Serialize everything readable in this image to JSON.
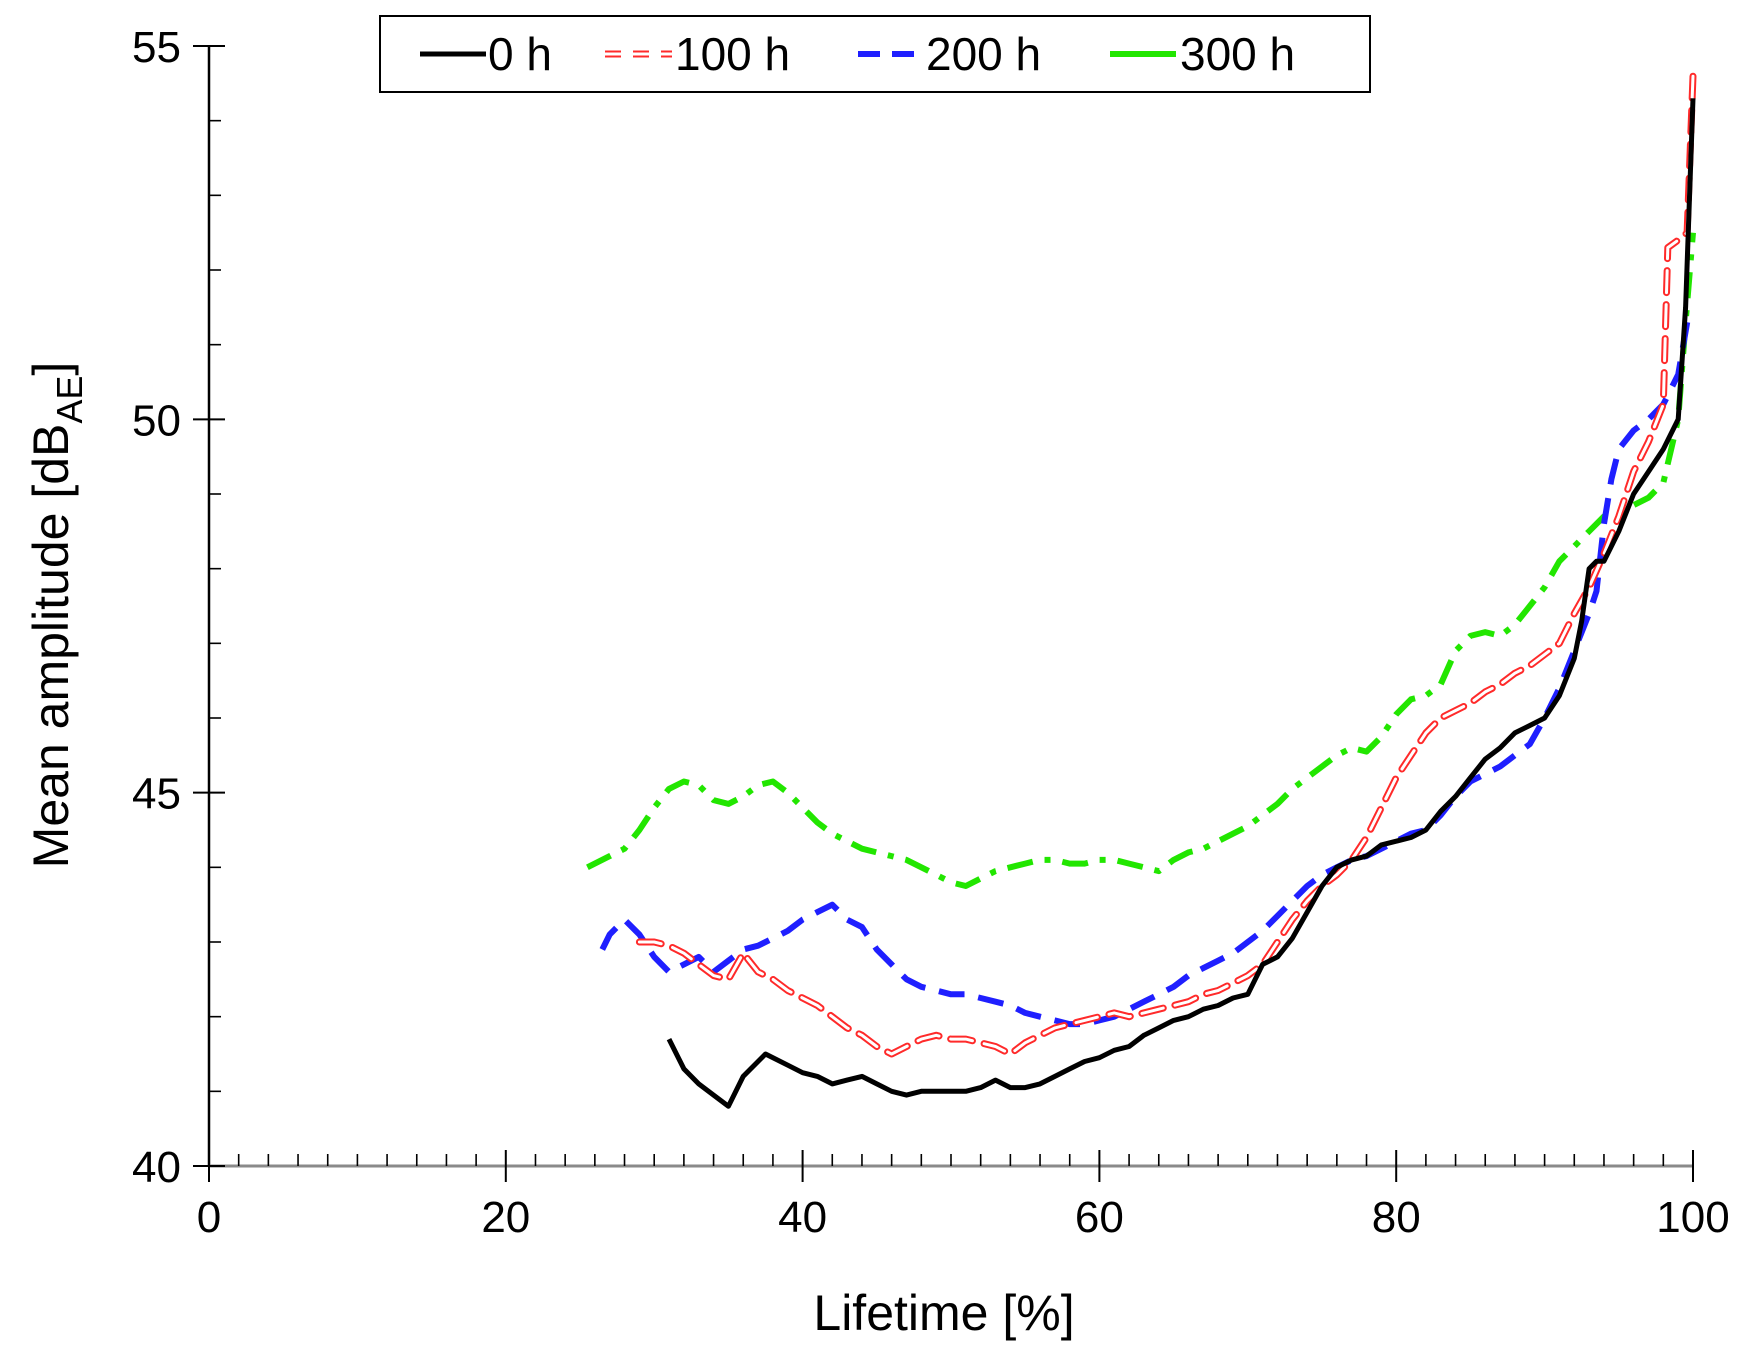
{
  "chart_data": {
    "type": "line",
    "title": "",
    "xlabel": "Lifetime [%]",
    "ylabel": {
      "main": "Mean amplitude [dB",
      "sub": "AE",
      "close": "]"
    },
    "xlim": [
      0,
      100
    ],
    "ylim": [
      40,
      55
    ],
    "xticks": [
      0,
      20,
      40,
      60,
      80,
      100
    ],
    "yticks": [
      40,
      45,
      50,
      55
    ],
    "x_minor_step": 2,
    "y_minor_step": 1,
    "grid": false,
    "legend_position": "top",
    "series": [
      {
        "name": "0 h",
        "color": "#000000",
        "dash": "solid",
        "points": [
          [
            31,
            41.7
          ],
          [
            32,
            41.3
          ],
          [
            33,
            41.1
          ],
          [
            34,
            40.95
          ],
          [
            35,
            40.8
          ],
          [
            36,
            41.2
          ],
          [
            37.5,
            41.5
          ],
          [
            39,
            41.35
          ],
          [
            40,
            41.25
          ],
          [
            41,
            41.2
          ],
          [
            42,
            41.1
          ],
          [
            43,
            41.15
          ],
          [
            44,
            41.2
          ],
          [
            45,
            41.1
          ],
          [
            46,
            41.0
          ],
          [
            47,
            40.95
          ],
          [
            48,
            41.0
          ],
          [
            49,
            41.0
          ],
          [
            50,
            41.0
          ],
          [
            51,
            41.0
          ],
          [
            52,
            41.05
          ],
          [
            53,
            41.15
          ],
          [
            54,
            41.05
          ],
          [
            55,
            41.05
          ],
          [
            56,
            41.1
          ],
          [
            57,
            41.2
          ],
          [
            58,
            41.3
          ],
          [
            59,
            41.4
          ],
          [
            60,
            41.45
          ],
          [
            61,
            41.55
          ],
          [
            62,
            41.6
          ],
          [
            63,
            41.75
          ],
          [
            64,
            41.85
          ],
          [
            65,
            41.95
          ],
          [
            66,
            42.0
          ],
          [
            67,
            42.1
          ],
          [
            68,
            42.15
          ],
          [
            69,
            42.25
          ],
          [
            70,
            42.3
          ],
          [
            70.5,
            42.5
          ],
          [
            71,
            42.7
          ],
          [
            72,
            42.8
          ],
          [
            73,
            43.05
          ],
          [
            74,
            43.4
          ],
          [
            75,
            43.75
          ],
          [
            76,
            44.0
          ],
          [
            77,
            44.1
          ],
          [
            78,
            44.15
          ],
          [
            79,
            44.3
          ],
          [
            80,
            44.35
          ],
          [
            81,
            44.4
          ],
          [
            82,
            44.5
          ],
          [
            83,
            44.75
          ],
          [
            84,
            44.95
          ],
          [
            85,
            45.2
          ],
          [
            86,
            45.45
          ],
          [
            87,
            45.6
          ],
          [
            88,
            45.8
          ],
          [
            89,
            45.9
          ],
          [
            90,
            46.0
          ],
          [
            91,
            46.3
          ],
          [
            92,
            46.8
          ],
          [
            92.5,
            47.3
          ],
          [
            93,
            48.0
          ],
          [
            93.5,
            48.1
          ],
          [
            94,
            48.1
          ],
          [
            94.5,
            48.3
          ],
          [
            95,
            48.5
          ],
          [
            96,
            49.0
          ],
          [
            97,
            49.3
          ],
          [
            98,
            49.6
          ],
          [
            99,
            50.0
          ],
          [
            99.5,
            51.5
          ],
          [
            100,
            54.3
          ]
        ]
      },
      {
        "name": "100 h",
        "color": "#ff2a2a",
        "dash": "outline-dash",
        "points": [
          [
            29,
            43.0
          ],
          [
            30,
            43.0
          ],
          [
            31,
            42.95
          ],
          [
            32,
            42.85
          ],
          [
            33,
            42.7
          ],
          [
            34,
            42.55
          ],
          [
            35,
            42.5
          ],
          [
            36,
            42.85
          ],
          [
            37,
            42.6
          ],
          [
            38,
            42.5
          ],
          [
            39,
            42.35
          ],
          [
            40,
            42.25
          ],
          [
            41,
            42.15
          ],
          [
            42,
            42.0
          ],
          [
            43,
            41.85
          ],
          [
            44,
            41.75
          ],
          [
            45,
            41.6
          ],
          [
            46,
            41.5
          ],
          [
            47,
            41.6
          ],
          [
            48,
            41.7
          ],
          [
            49,
            41.75
          ],
          [
            50,
            41.7
          ],
          [
            51,
            41.7
          ],
          [
            52,
            41.65
          ],
          [
            53,
            41.6
          ],
          [
            54,
            41.5
          ],
          [
            55,
            41.65
          ],
          [
            56,
            41.75
          ],
          [
            57,
            41.85
          ],
          [
            58,
            41.9
          ],
          [
            59,
            41.95
          ],
          [
            60,
            42.0
          ],
          [
            61,
            42.05
          ],
          [
            62,
            42.0
          ],
          [
            63,
            42.05
          ],
          [
            64,
            42.1
          ],
          [
            65,
            42.15
          ],
          [
            66,
            42.2
          ],
          [
            67,
            42.3
          ],
          [
            68,
            42.35
          ],
          [
            69,
            42.45
          ],
          [
            70,
            42.55
          ],
          [
            71,
            42.7
          ],
          [
            72,
            43.0
          ],
          [
            73,
            43.3
          ],
          [
            74,
            43.55
          ],
          [
            75,
            43.75
          ],
          [
            76,
            43.9
          ],
          [
            77,
            44.1
          ],
          [
            78,
            44.4
          ],
          [
            79,
            44.8
          ],
          [
            80,
            45.2
          ],
          [
            81,
            45.5
          ],
          [
            82,
            45.8
          ],
          [
            83,
            46.0
          ],
          [
            84,
            46.1
          ],
          [
            85,
            46.2
          ],
          [
            86,
            46.35
          ],
          [
            87,
            46.45
          ],
          [
            88,
            46.6
          ],
          [
            89,
            46.7
          ],
          [
            90,
            46.85
          ],
          [
            91,
            47.0
          ],
          [
            92,
            47.4
          ],
          [
            93,
            47.75
          ],
          [
            94,
            48.2
          ],
          [
            95,
            48.7
          ],
          [
            96,
            49.3
          ],
          [
            97,
            49.7
          ],
          [
            98,
            50.2
          ],
          [
            98.3,
            52.3
          ],
          [
            99,
            52.4
          ],
          [
            99.6,
            52.5
          ],
          [
            100,
            54.6
          ]
        ]
      },
      {
        "name": "200 h",
        "color": "#1f1fff",
        "dash": "dash",
        "points": [
          [
            26.5,
            42.9
          ],
          [
            27,
            43.1
          ],
          [
            28,
            43.3
          ],
          [
            29,
            43.1
          ],
          [
            30,
            42.8
          ],
          [
            31,
            42.6
          ],
          [
            32,
            42.7
          ],
          [
            33,
            42.8
          ],
          [
            34,
            42.6
          ],
          [
            35,
            42.75
          ],
          [
            36,
            42.9
          ],
          [
            37,
            42.95
          ],
          [
            38,
            43.05
          ],
          [
            39,
            43.15
          ],
          [
            40,
            43.3
          ],
          [
            41,
            43.4
          ],
          [
            42,
            43.5
          ],
          [
            43,
            43.3
          ],
          [
            44,
            43.2
          ],
          [
            45,
            42.9
          ],
          [
            46,
            42.7
          ],
          [
            47,
            42.5
          ],
          [
            48,
            42.4
          ],
          [
            49,
            42.35
          ],
          [
            50,
            42.3
          ],
          [
            51,
            42.3
          ],
          [
            52,
            42.25
          ],
          [
            53,
            42.2
          ],
          [
            54,
            42.15
          ],
          [
            55,
            42.05
          ],
          [
            56,
            42.0
          ],
          [
            57,
            41.95
          ],
          [
            58,
            41.9
          ],
          [
            59,
            41.9
          ],
          [
            60,
            41.95
          ],
          [
            61,
            42.0
          ],
          [
            62,
            42.1
          ],
          [
            63,
            42.2
          ],
          [
            64,
            42.3
          ],
          [
            65,
            42.4
          ],
          [
            66,
            42.55
          ],
          [
            67,
            42.65
          ],
          [
            68,
            42.75
          ],
          [
            69,
            42.85
          ],
          [
            70,
            43.0
          ],
          [
            71,
            43.15
          ],
          [
            72,
            43.35
          ],
          [
            73,
            43.55
          ],
          [
            74,
            43.75
          ],
          [
            75,
            43.9
          ],
          [
            76,
            44.0
          ],
          [
            77,
            44.1
          ],
          [
            78,
            44.15
          ],
          [
            79,
            44.25
          ],
          [
            80,
            44.35
          ],
          [
            81,
            44.45
          ],
          [
            82,
            44.5
          ],
          [
            83,
            44.7
          ],
          [
            84,
            44.95
          ],
          [
            85,
            45.15
          ],
          [
            86,
            45.25
          ],
          [
            87,
            45.35
          ],
          [
            88,
            45.5
          ],
          [
            89,
            45.65
          ],
          [
            90,
            46.0
          ],
          [
            91,
            46.4
          ],
          [
            92,
            46.9
          ],
          [
            93,
            47.4
          ],
          [
            93.5,
            47.7
          ],
          [
            94,
            48.6
          ],
          [
            94.5,
            49.2
          ],
          [
            95,
            49.6
          ],
          [
            96,
            49.85
          ],
          [
            97,
            50.0
          ],
          [
            98,
            50.2
          ],
          [
            99,
            50.6
          ],
          [
            99.7,
            51.4
          ],
          [
            100,
            51.4
          ]
        ]
      },
      {
        "name": "300 h",
        "color": "#22e600",
        "dash": "dash-dot",
        "points": [
          [
            25.5,
            44.0
          ],
          [
            27,
            44.15
          ],
          [
            28,
            44.25
          ],
          [
            29,
            44.5
          ],
          [
            30,
            44.8
          ],
          [
            31,
            45.05
          ],
          [
            32,
            45.15
          ],
          [
            33,
            45.1
          ],
          [
            34,
            44.9
          ],
          [
            35,
            44.85
          ],
          [
            36,
            44.95
          ],
          [
            37,
            45.1
          ],
          [
            38,
            45.15
          ],
          [
            39,
            45.0
          ],
          [
            40,
            44.8
          ],
          [
            41,
            44.6
          ],
          [
            42,
            44.45
          ],
          [
            43,
            44.35
          ],
          [
            44,
            44.25
          ],
          [
            45,
            44.2
          ],
          [
            46,
            44.15
          ],
          [
            47,
            44.1
          ],
          [
            48,
            44.0
          ],
          [
            49,
            43.9
          ],
          [
            50,
            43.8
          ],
          [
            51,
            43.75
          ],
          [
            52,
            43.85
          ],
          [
            53,
            43.95
          ],
          [
            54,
            44.0
          ],
          [
            55,
            44.05
          ],
          [
            56,
            44.1
          ],
          [
            57,
            44.1
          ],
          [
            58,
            44.05
          ],
          [
            59,
            44.05
          ],
          [
            60,
            44.1
          ],
          [
            61,
            44.1
          ],
          [
            62,
            44.05
          ],
          [
            63,
            44.0
          ],
          [
            64,
            43.95
          ],
          [
            65,
            44.1
          ],
          [
            66,
            44.2
          ],
          [
            67,
            44.25
          ],
          [
            68,
            44.35
          ],
          [
            69,
            44.45
          ],
          [
            70,
            44.55
          ],
          [
            71,
            44.7
          ],
          [
            72,
            44.85
          ],
          [
            73,
            45.05
          ],
          [
            74,
            45.2
          ],
          [
            75,
            45.35
          ],
          [
            76,
            45.5
          ],
          [
            77,
            45.6
          ],
          [
            78,
            45.55
          ],
          [
            79,
            45.75
          ],
          [
            80,
            46.05
          ],
          [
            81,
            46.25
          ],
          [
            82,
            46.3
          ],
          [
            83,
            46.45
          ],
          [
            84,
            46.9
          ],
          [
            85,
            47.1
          ],
          [
            86,
            47.15
          ],
          [
            87,
            47.1
          ],
          [
            88,
            47.25
          ],
          [
            89,
            47.5
          ],
          [
            90,
            47.75
          ],
          [
            91,
            48.1
          ],
          [
            92,
            48.3
          ],
          [
            93,
            48.5
          ],
          [
            94,
            48.7
          ],
          [
            95,
            48.75
          ],
          [
            96,
            48.85
          ],
          [
            97,
            48.95
          ],
          [
            98,
            49.15
          ],
          [
            99,
            50.0
          ],
          [
            99.5,
            51.3
          ],
          [
            100,
            52.5
          ]
        ]
      }
    ]
  }
}
